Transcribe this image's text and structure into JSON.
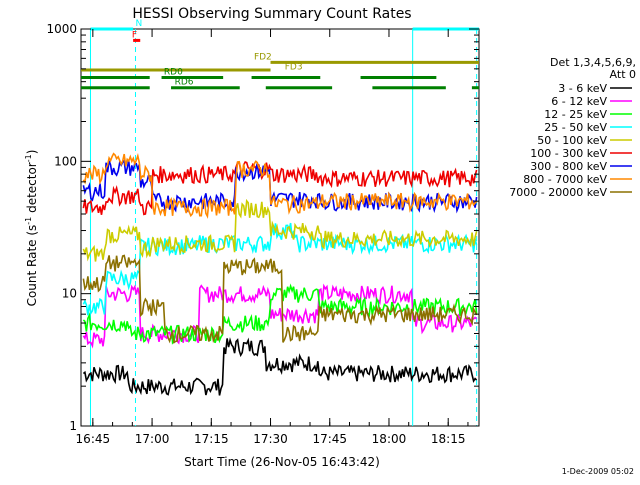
{
  "chart_data": {
    "type": "line",
    "title": "HESSI Observing Summary Count Rates",
    "xlabel": "Start Time (26-Nov-05 16:43:42)",
    "ylabel_main": "Count Rate (s",
    "ylabel_sup1": "-1",
    "ylabel_mid": " detector",
    "ylabel_sup2": "-1",
    "ylabel_end": ")",
    "y_scale": "log",
    "ylim": [
      1,
      1000
    ],
    "xlim_minutes": [
      16.7,
      18.38
    ],
    "x_ticks": [
      {
        "t": 16.75,
        "label": "16:45"
      },
      {
        "t": 17.0,
        "label": "17:00"
      },
      {
        "t": 17.25,
        "label": "17:15"
      },
      {
        "t": 17.5,
        "label": "17:30"
      },
      {
        "t": 17.75,
        "label": "17:45"
      },
      {
        "t": 18.0,
        "label": "18:00"
      },
      {
        "t": 18.25,
        "label": "18:15"
      }
    ],
    "y_ticks": [
      {
        "v": 1,
        "label": "1"
      },
      {
        "v": 10,
        "label": "10"
      },
      {
        "v": 100,
        "label": "100"
      },
      {
        "v": 1000,
        "label": "1000"
      }
    ],
    "legend_header": [
      "Det 1,3,4,5,6,9,",
      "Att 0"
    ],
    "legend_placement": "right",
    "series": [
      {
        "name": "3 - 6 keV",
        "color": "#000000"
      },
      {
        "name": "6 - 12 keV",
        "color": "#ff00ff"
      },
      {
        "name": "12 - 25 keV",
        "color": "#00ff00"
      },
      {
        "name": "25 - 50 keV",
        "color": "#00ffff"
      },
      {
        "name": "50 - 100 keV",
        "color": "#cccc00"
      },
      {
        "name": "100 - 300 keV",
        "color": "#ee0000"
      },
      {
        "name": "300 - 800 keV",
        "color": "#0000ee"
      },
      {
        "name": "800 - 7000 keV",
        "color": "#ff8800"
      },
      {
        "name": "7000 - 20000 keV",
        "color": "#8b7000"
      }
    ],
    "flag_bars": [
      {
        "label": "N",
        "color": "#00ffff",
        "y": 1000,
        "segments": [
          [
            16.74,
            16.92
          ],
          [
            18.1,
            18.38
          ]
        ]
      },
      {
        "label": "F",
        "color": "#ff0000",
        "y": 820,
        "segments": [
          [
            16.92,
            16.95
          ]
        ]
      },
      {
        "label": "FD2",
        "color": "#999900",
        "y": 560,
        "segments": [
          [
            17.5,
            18.38
          ]
        ]
      },
      {
        "label": "FD3",
        "color": "#999900",
        "y": 490,
        "segments": [
          [
            16.7,
            17.5
          ]
        ]
      },
      {
        "label": "RD0",
        "color": "#008000",
        "y": 430,
        "segments": [
          [
            16.7,
            16.99
          ],
          [
            17.04,
            17.3
          ],
          [
            17.42,
            17.71
          ],
          [
            17.88,
            18.2
          ]
        ]
      },
      {
        "label": "RD6",
        "color": "#008000",
        "y": 360,
        "segments": [
          [
            16.7,
            16.99
          ],
          [
            17.08,
            17.37
          ],
          [
            17.48,
            17.76
          ],
          [
            17.93,
            18.24
          ],
          [
            18.35,
            18.38
          ]
        ]
      }
    ],
    "flag_label_positions": [
      {
        "label": "N",
        "t": 16.93,
        "y": 1000
      },
      {
        "label": "F",
        "t": 16.915,
        "y": 820
      },
      {
        "label": "FD2",
        "t": 17.43,
        "y": 560
      },
      {
        "label": "FD3",
        "t": 17.56,
        "y": 470
      },
      {
        "label": "RD0",
        "t": 17.05,
        "y": 430
      },
      {
        "label": "RD6",
        "t": 17.095,
        "y": 360
      }
    ],
    "vlines": [
      {
        "t": 16.74,
        "style": "solid",
        "color": "#00ffff"
      },
      {
        "t": 16.93,
        "style": "dashed",
        "color": "#00ffff"
      },
      {
        "t": 18.1,
        "style": "solid",
        "color": "#00ffff"
      },
      {
        "t": 18.37,
        "style": "dashed",
        "color": "#00ffff"
      }
    ],
    "timestamp": "1-Dec-2009 05:02"
  }
}
